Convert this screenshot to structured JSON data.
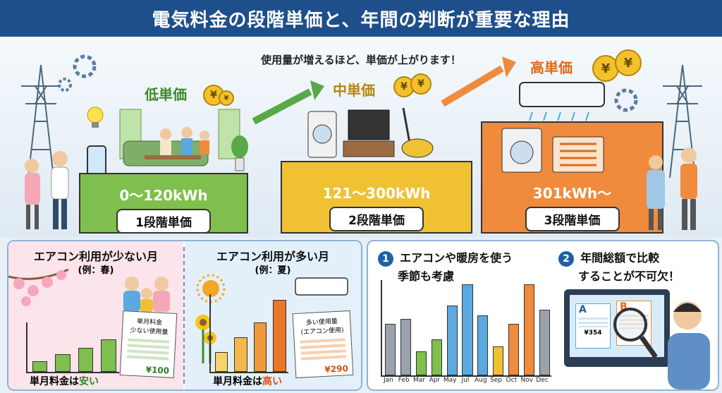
{
  "title": "電気料金の段階単価と、年間の判断が重要な理由",
  "subtitle": "使用量が増えるほど、単価が上がります！",
  "tiers": [
    {
      "label": "低単価",
      "range": "0～120kWh",
      "stage": "1段階単価",
      "color": "#7fbf4d"
    },
    {
      "label": "中単価",
      "range": "121～300kWh",
      "stage": "2段階単価",
      "color": "#f0c233"
    },
    {
      "label": "高単価",
      "range": "301kWh～",
      "stage": "3段階単価",
      "color": "#f08a3c"
    }
  ],
  "coin_symbol": "¥",
  "spring_panel": {
    "heading": "エアコン利用が少ない月",
    "example": "(例：春)",
    "receipt_line1": "単月料金",
    "receipt_line2": "少ない使用量",
    "amount": "¥100",
    "caption_prefix": "単月料金は",
    "caption_highlight": "安い",
    "bars": [
      0.2,
      0.35,
      0.5,
      0.68
    ]
  },
  "summer_panel": {
    "heading": "エアコン利用が多い月",
    "example": "(例：夏)",
    "receipt_line1": "多い使用量",
    "receipt_line2": "(エアコン使用)",
    "amount": "¥290",
    "caption_prefix": "単月料金は",
    "caption_highlight": "高い",
    "bars": [
      0.25,
      0.45,
      0.65,
      0.95
    ]
  },
  "point1": {
    "num": "1",
    "line1": "エアコンや暖房を使う",
    "line2": "季節も考慮"
  },
  "point2": {
    "num": "2",
    "line1": "年間総額で比較",
    "line2": "することが不可欠！"
  },
  "chart_data": {
    "type": "bar",
    "categories": [
      "Jan",
      "Feb",
      "Mar",
      "Apr",
      "May",
      "Jul",
      "Aug",
      "Sep",
      "Oct",
      "Nov",
      "Dec"
    ],
    "values": [
      0.55,
      0.6,
      0.25,
      0.38,
      0.75,
      0.98,
      0.64,
      0.3,
      0.55,
      0.98,
      0.7
    ],
    "colors": [
      "#9aa3ab",
      "#9aa3ab",
      "#7fbf4d",
      "#7fbf4d",
      "#5aa9e0",
      "#5aa9e0",
      "#5aa9e0",
      "#f0c233",
      "#f08a3c",
      "#f08a3c",
      "#9aa3ab"
    ]
  },
  "doc_a": {
    "letter": "A",
    "amount": "¥354"
  },
  "doc_b": {
    "letter": "B"
  }
}
